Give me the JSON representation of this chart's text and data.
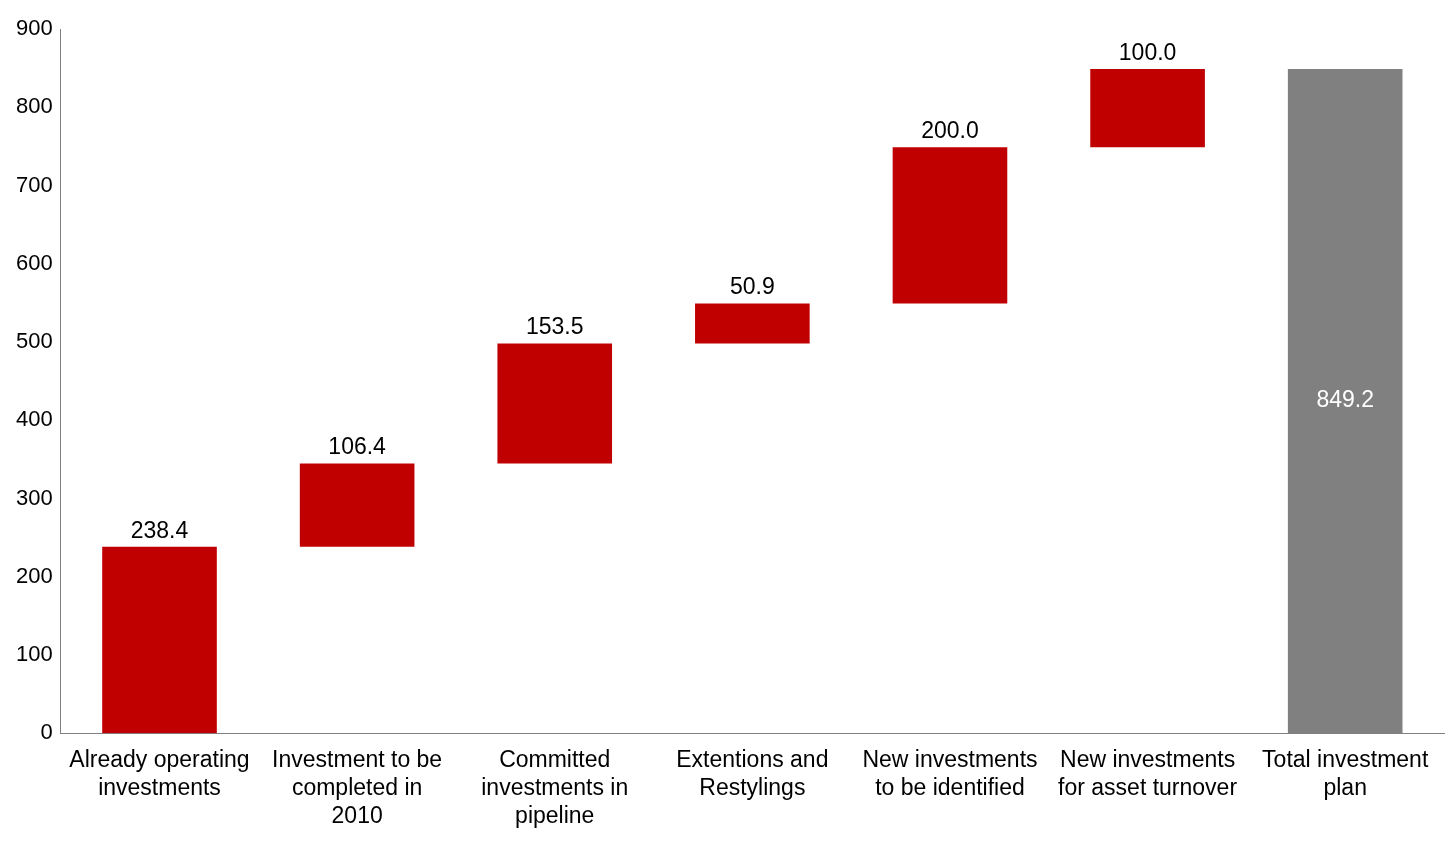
{
  "chart_data": {
    "type": "bar",
    "categories": [
      "Already operating investments",
      "Investment to be completed in 2010",
      "Committed investments in pipeline",
      "Extentions and Restylings",
      "New investments to be identified",
      "New investments for asset turnover",
      "Total investment plan"
    ],
    "values": [
      238.4,
      106.4,
      153.5,
      50.9,
      200.0,
      100.0,
      849.2
    ],
    "base": [
      0,
      238.4,
      344.8,
      498.3,
      549.2,
      749.2,
      0
    ],
    "colors": [
      "#c00000",
      "#c00000",
      "#c00000",
      "#c00000",
      "#c00000",
      "#c00000",
      "#808080"
    ],
    "ylim": [
      0,
      900
    ],
    "yticks": [
      0,
      100,
      200,
      300,
      400,
      500,
      600,
      700,
      800,
      900
    ],
    "value_labels": [
      "238.4",
      "106.4",
      "153.5",
      "50.9",
      "200.0",
      "100.0",
      "849.2"
    ],
    "grid": false,
    "legend": false
  }
}
